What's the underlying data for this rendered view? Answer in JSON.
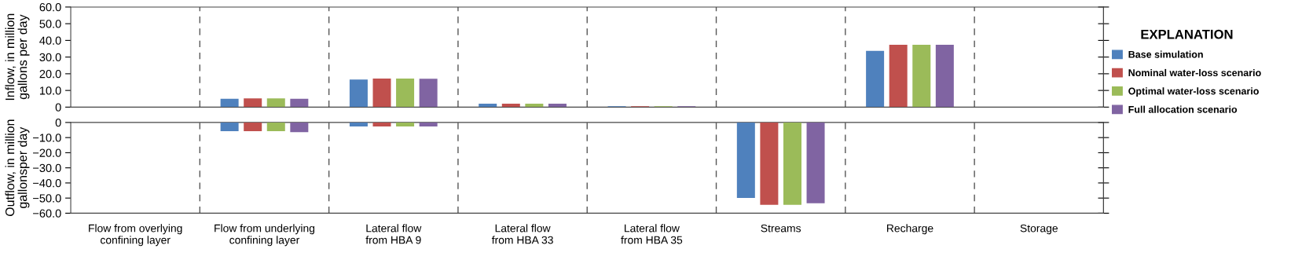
{
  "chart_data": [
    {
      "type": "bar",
      "ylabel": "Inflow, in million\ngallons per day",
      "series": [
        {
          "name": "Base simulation",
          "color": "#4f81bd",
          "values": [
            0,
            5.0,
            16.5,
            2.0,
            0.5,
            0,
            33.7,
            0
          ]
        },
        {
          "name": "Nominal water-loss scenario",
          "color": "#c0504d",
          "values": [
            0,
            5.2,
            17.1,
            2.0,
            0.5,
            0,
            37.4,
            0
          ]
        },
        {
          "name": "Optimal water-loss scenario",
          "color": "#9bbb59",
          "values": [
            0,
            5.2,
            17.1,
            2.0,
            0.5,
            0,
            37.4,
            0
          ]
        },
        {
          "name": "Full allocation scenario",
          "color": "#8064a2",
          "values": [
            0,
            5.0,
            17.0,
            2.0,
            0.5,
            0,
            37.4,
            0
          ]
        }
      ],
      "ylim": [
        0,
        60
      ],
      "yticks": [
        0,
        {
          "value": 10,
          "label": "10.0"
        },
        {
          "value": 20,
          "label": "20.0"
        },
        {
          "value": 30,
          "label": "30.0"
        },
        {
          "value": 40,
          "label": "40.0"
        },
        {
          "value": 50,
          "label": "50.0"
        },
        {
          "value": 60,
          "label": "60.0"
        }
      ],
      "grid": "x",
      "legend": "right",
      "legend_title": "EXPLANATION",
      "tick_labels": "y"
    },
    {
      "type": "bar",
      "ylabel": "Outflow, in million\ngallonsper day",
      "categories": [
        "Flow from overlying\nconfining layer",
        "Flow from underlying\nconfining layer",
        "Lateral flow\nfrom HBA 9",
        "Lateral flow\nfrom HBA 33",
        "Lateral flow\nfrom HBA 35",
        "Streams",
        "Recharge",
        "Storage"
      ],
      "series": [
        {
          "color": "#4f81bd",
          "values": [
            0,
            -5.7,
            -2.7,
            0,
            0,
            -49.9,
            0,
            0
          ]
        },
        {
          "color": "#c0504d",
          "values": [
            0,
            -5.7,
            -2.7,
            0,
            0,
            -54.4,
            0,
            0
          ]
        },
        {
          "color": "#9bbb59",
          "values": [
            0,
            -5.7,
            -2.7,
            0,
            0,
            -54.4,
            0,
            0
          ]
        },
        {
          "color": "#8064a2",
          "values": [
            0,
            -6.4,
            -2.7,
            0,
            0,
            -53.4,
            0,
            0
          ]
        }
      ],
      "ylim": [
        -60,
        0
      ],
      "yticks": [
        {
          "value": -60,
          "label": "−60.0"
        },
        {
          "value": -50,
          "label": "−50.0"
        },
        {
          "value": -40,
          "label": "−40.0"
        },
        {
          "value": -30,
          "label": "−30.0"
        },
        {
          "value": -20,
          "label": "−20.0"
        },
        {
          "value": -10,
          "label": "−10.0"
        },
        0
      ],
      "grid": "x"
    }
  ]
}
